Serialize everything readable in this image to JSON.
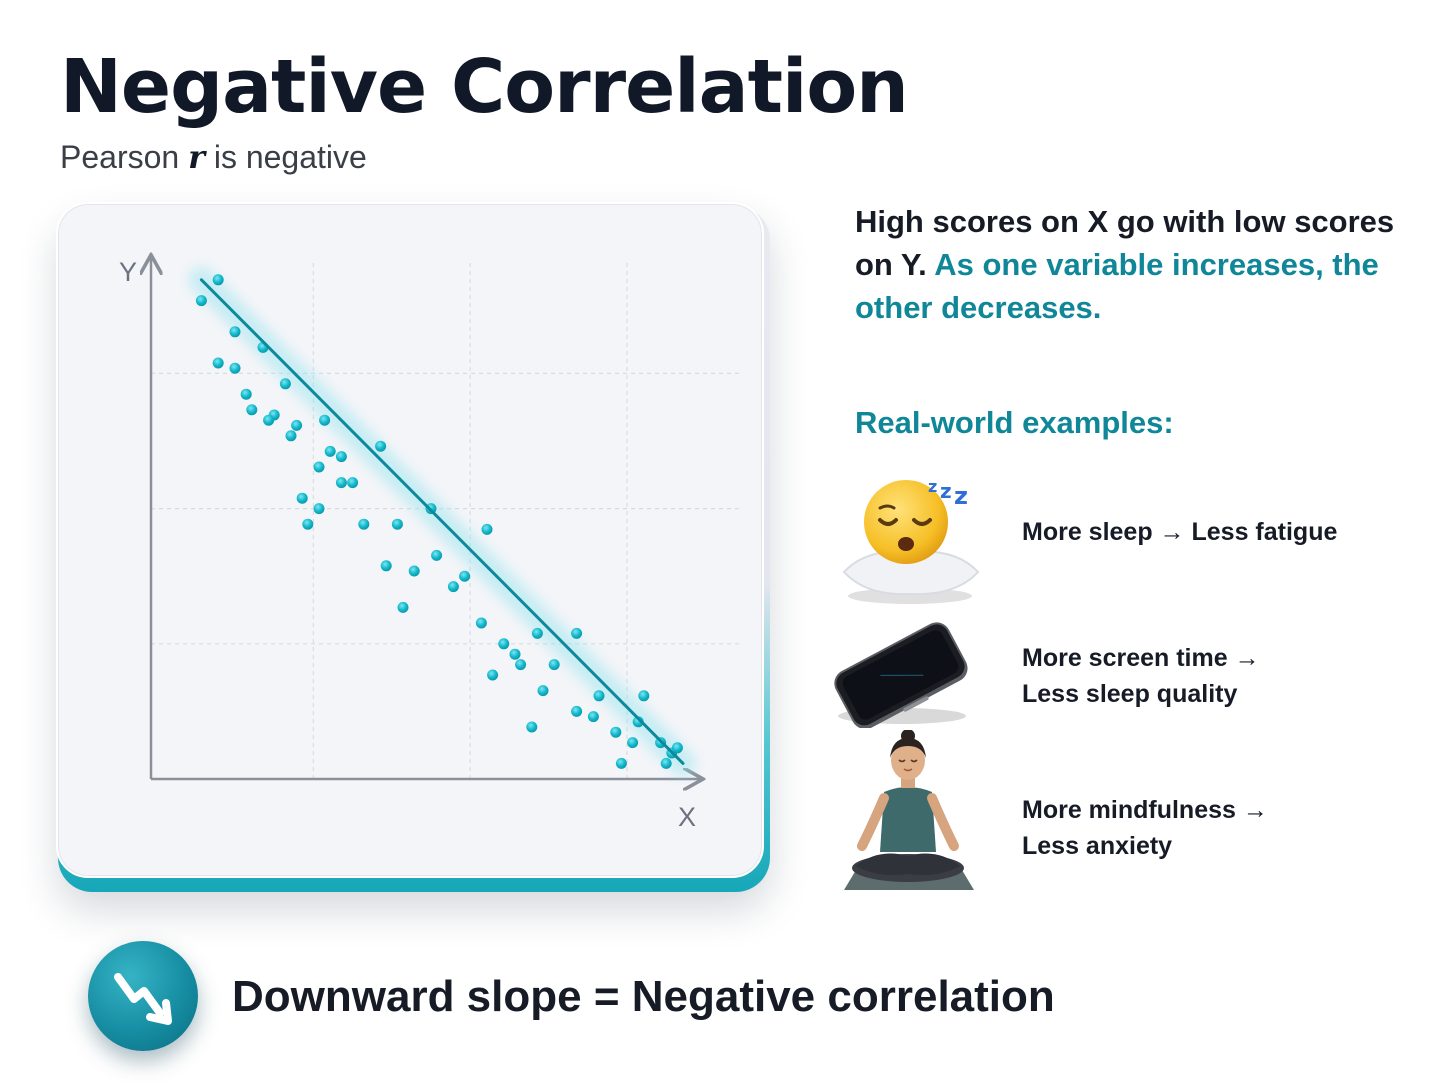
{
  "header": {
    "title": "Negative Correlation",
    "subtitle_prefix": "Pearson ",
    "subtitle_symbol": "r",
    "subtitle_suffix": " is negative"
  },
  "description": {
    "plain": "High scores on X go with low scores on Y.",
    "highlight": "As one variable increases, the other decreases."
  },
  "examples_heading": "Real-world examples:",
  "examples": [
    {
      "icon": "sleeping-face-on-pillow-icon",
      "line1": "More sleep → Less fatigue",
      "line2": ""
    },
    {
      "icon": "smartphone-icon",
      "line1": "More screen time →",
      "line2": "Less sleep quality"
    },
    {
      "icon": "meditating-person-icon",
      "line1": "More mindfulness →",
      "line2": "Less anxiety"
    }
  ],
  "footer": {
    "icon": "downward-trend-arrow-icon",
    "text": "Downward slope = Negative correlation"
  },
  "colors": {
    "accent": "#0f8798",
    "point": "#12b9cc",
    "trendline": "#0c8a9b",
    "axis": "#8a9099",
    "text": "#161b26"
  },
  "chart_data": {
    "type": "scatter",
    "title": "",
    "xlabel": "X",
    "ylabel": "Y",
    "xlim": [
      0,
      10
    ],
    "ylim": [
      0,
      10
    ],
    "grid": true,
    "trendline": {
      "x": [
        0.9,
        9.5
      ],
      "y": [
        9.6,
        0.3
      ]
    },
    "points": [
      {
        "x": 0.9,
        "y": 9.2
      },
      {
        "x": 1.2,
        "y": 9.6
      },
      {
        "x": 1.2,
        "y": 8.0
      },
      {
        "x": 1.5,
        "y": 8.6
      },
      {
        "x": 2.0,
        "y": 8.3
      },
      {
        "x": 1.7,
        "y": 7.4
      },
      {
        "x": 1.5,
        "y": 7.9
      },
      {
        "x": 2.2,
        "y": 7.0
      },
      {
        "x": 1.8,
        "y": 7.1
      },
      {
        "x": 2.1,
        "y": 6.9
      },
      {
        "x": 2.5,
        "y": 6.6
      },
      {
        "x": 2.6,
        "y": 6.8
      },
      {
        "x": 3.1,
        "y": 6.9
      },
      {
        "x": 3.4,
        "y": 6.2
      },
      {
        "x": 3.0,
        "y": 6.0
      },
      {
        "x": 2.7,
        "y": 5.4
      },
      {
        "x": 3.0,
        "y": 5.2
      },
      {
        "x": 3.6,
        "y": 5.7
      },
      {
        "x": 4.1,
        "y": 6.4
      },
      {
        "x": 3.4,
        "y": 5.7
      },
      {
        "x": 2.8,
        "y": 4.9
      },
      {
        "x": 3.8,
        "y": 4.9
      },
      {
        "x": 4.4,
        "y": 4.9
      },
      {
        "x": 5.0,
        "y": 5.2
      },
      {
        "x": 4.7,
        "y": 4.0
      },
      {
        "x": 4.2,
        "y": 4.1
      },
      {
        "x": 4.5,
        "y": 3.3
      },
      {
        "x": 5.4,
        "y": 3.7
      },
      {
        "x": 5.6,
        "y": 3.9
      },
      {
        "x": 6.0,
        "y": 4.8
      },
      {
        "x": 5.9,
        "y": 3.0
      },
      {
        "x": 6.3,
        "y": 2.6
      },
      {
        "x": 6.1,
        "y": 2.0
      },
      {
        "x": 6.9,
        "y": 2.8
      },
      {
        "x": 7.2,
        "y": 2.2
      },
      {
        "x": 7.0,
        "y": 1.7
      },
      {
        "x": 7.6,
        "y": 2.8
      },
      {
        "x": 6.6,
        "y": 2.2
      },
      {
        "x": 6.8,
        "y": 1.0
      },
      {
        "x": 7.6,
        "y": 1.3
      },
      {
        "x": 8.0,
        "y": 1.6
      },
      {
        "x": 8.8,
        "y": 1.6
      },
      {
        "x": 8.3,
        "y": 0.9
      },
      {
        "x": 8.6,
        "y": 0.7
      },
      {
        "x": 8.7,
        "y": 1.1
      },
      {
        "x": 9.1,
        "y": 0.7
      },
      {
        "x": 9.3,
        "y": 0.5
      },
      {
        "x": 9.2,
        "y": 0.3
      },
      {
        "x": 8.4,
        "y": 0.3
      },
      {
        "x": 9.4,
        "y": 0.6
      },
      {
        "x": 5.1,
        "y": 4.3
      },
      {
        "x": 3.2,
        "y": 6.3
      },
      {
        "x": 2.4,
        "y": 7.6
      },
      {
        "x": 6.5,
        "y": 2.4
      },
      {
        "x": 7.9,
        "y": 1.2
      }
    ]
  }
}
